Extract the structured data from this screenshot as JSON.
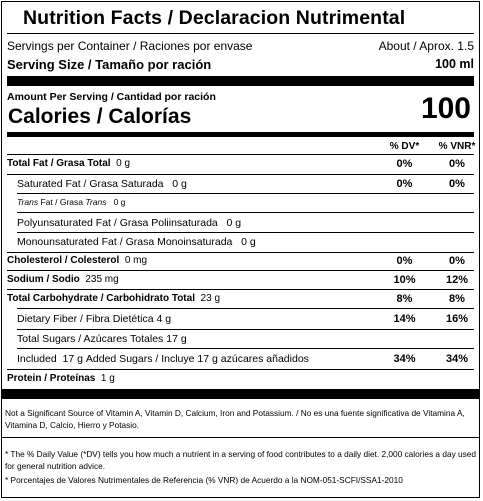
{
  "title": "Nutrition Facts / Declaracion Nutrimental",
  "servings": {
    "label": "Servings per Container / Raciones por envase",
    "value": "About / Aprox. 1.5"
  },
  "serving_size": {
    "label": "Serving Size / Tamaño por ración",
    "value": "100 ml"
  },
  "amount_header": "Amount Per Serving / Cantidad por ración",
  "calories": {
    "label": "Calories / Calorías",
    "value": "100"
  },
  "columns": {
    "dv": "% DV*",
    "vnr": "% VNR*"
  },
  "rows": [
    {
      "label": "Total Fat / Grasa Total",
      "amount": "0 g",
      "dv": "0%",
      "vnr": "0%"
    },
    {
      "label": "Saturated Fat / Grasa Saturada",
      "amount": "0 g",
      "dv": "0%",
      "vnr": "0%"
    },
    {
      "label_italic_1": "Trans",
      "label_mid": " Fat / Grasa ",
      "label_italic_2": "Trans",
      "amount": "0 g"
    },
    {
      "label": "Polyunsaturated Fat / Grasa Poliinsaturada",
      "amount": "0 g"
    },
    {
      "label": "Monounsaturated Fat / Grasa Monoinsaturada",
      "amount": "0 g"
    },
    {
      "label": "Cholesterol / Colesterol",
      "amount": "0 mg",
      "dv": "0%",
      "vnr": "0%"
    },
    {
      "label": "Sodium / Sodio",
      "amount": "235 mg",
      "dv": "10%",
      "vnr": "12%"
    },
    {
      "label": "Total Carbohydrate / Carbohidrato Total",
      "amount": "23 g",
      "dv": "8%",
      "vnr": "8%"
    },
    {
      "label": "Dietary Fiber / Fibra Dietética",
      "amount": "4 g",
      "dv": "14%",
      "vnr": "16%"
    },
    {
      "label": "Total Sugars / Azúcares Totales",
      "amount": "17 g"
    },
    {
      "label_pre": "Included",
      "amount_pre": "17 g",
      "label": "Added Sugars / Incluye",
      "amount": "17 g",
      "label_post": "azúcares añadidos",
      "dv": "34%",
      "vnr": "34%"
    },
    {
      "label": "Protein / Proteínas",
      "amount": "1 g"
    }
  ],
  "footnote_vitamins": "Not a Significant Source of Vitamin A, Vitamin D, Calcium, Iron and Potassium. / No es una fuente significativa de Vitamina A, Vitamina D, Calcio, Hierro y Potasio.",
  "footnote_dv": "* The % Daily Value (*DV) tells you how much a nutrient in a serving of food contributes to a daily diet. 2,000 calories a day used for general nutrition advice.",
  "footnote_vnr": "* Porcentajes de Valores Nutrimentales de Referencia (% VNR) de Acuerdo a la NOM-051-SCFI/SSA1-2010"
}
